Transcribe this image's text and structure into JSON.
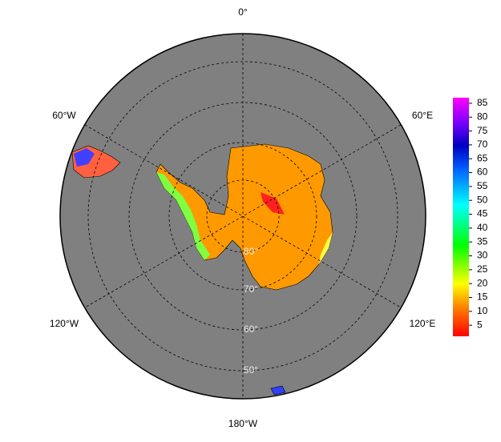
{
  "map": {
    "lon_labels": [
      "0°",
      "60°E",
      "120°E",
      "180°W",
      "120°W",
      "60°W"
    ],
    "lat_labels": [
      "80°",
      "70°",
      "60°",
      "50°"
    ],
    "colorbar": {
      "lim": [
        1,
        87
      ],
      "ticks": [
        5,
        10,
        15,
        20,
        25,
        30,
        35,
        40,
        45,
        50,
        55,
        60,
        65,
        70,
        75,
        80,
        85
      ]
    }
  }
}
